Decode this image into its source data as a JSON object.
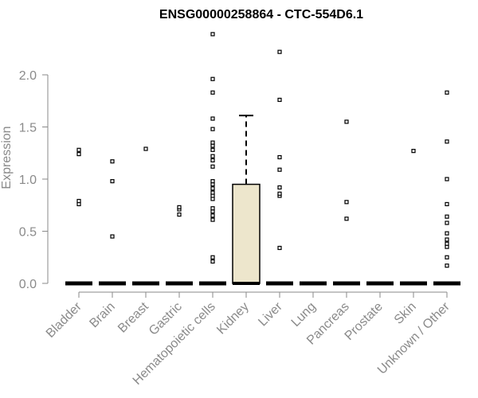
{
  "chart_data": {
    "type": "box",
    "title": "ENSG00000258864 - CTC-554D6.1",
    "xlabel": "",
    "ylabel": "Expression",
    "ylim": [
      0,
      2.4
    ],
    "yticks": [
      "0.0",
      "0.5",
      "1.0",
      "1.5",
      "2.0"
    ],
    "categories": [
      "Bladder",
      "Brain",
      "Breast",
      "Gastric",
      "Hematopoietic cells",
      "Kidney",
      "Liver",
      "Lung",
      "Pancreas",
      "Prostate",
      "Skin",
      "Unknown / Other"
    ],
    "box_fill": "#ede6cc",
    "series": [
      {
        "box": null,
        "points": [
          0,
          0,
          0,
          0,
          0,
          0.76,
          0.79,
          1.24,
          1.28
        ]
      },
      {
        "box": null,
        "points": [
          0,
          0,
          0,
          0,
          0,
          0.45,
          0.98,
          1.17
        ]
      },
      {
        "box": null,
        "points": [
          0,
          0,
          0,
          0,
          0,
          1.29
        ]
      },
      {
        "box": null,
        "points": [
          0,
          0,
          0,
          0,
          0,
          0.66,
          0.71,
          0.73
        ]
      },
      {
        "box": null,
        "points": [
          0,
          0,
          0,
          0,
          0,
          0.21,
          0.25,
          0.61,
          0.65,
          0.69,
          0.72,
          0.81,
          0.84,
          0.87,
          0.91,
          0.95,
          0.98,
          1.12,
          1.18,
          1.22,
          1.28,
          1.32,
          1.35,
          1.48,
          1.58,
          1.83,
          1.96,
          2.39
        ]
      },
      {
        "box": {
          "min": 0,
          "q1": 0,
          "median": 0,
          "q3": 0.95,
          "max": 1.61
        },
        "points": []
      },
      {
        "box": null,
        "points": [
          0,
          0,
          0,
          0,
          0,
          0.34,
          0.84,
          0.86,
          0.92,
          1.09,
          1.21,
          1.76,
          2.22
        ]
      },
      {
        "box": null,
        "points": [
          0,
          0,
          0,
          0,
          0
        ]
      },
      {
        "box": null,
        "points": [
          0,
          0,
          0,
          0,
          0,
          0.62,
          0.78,
          1.55
        ]
      },
      {
        "box": null,
        "points": [
          0,
          0,
          0,
          0,
          0
        ]
      },
      {
        "box": null,
        "points": [
          0,
          0,
          0,
          0,
          0,
          1.27
        ]
      },
      {
        "box": null,
        "points": [
          0,
          0,
          0,
          0,
          0,
          0.17,
          0.25,
          0.35,
          0.38,
          0.42,
          0.48,
          0.58,
          0.64,
          0.76,
          1.0,
          1.36,
          1.83
        ]
      }
    ]
  }
}
